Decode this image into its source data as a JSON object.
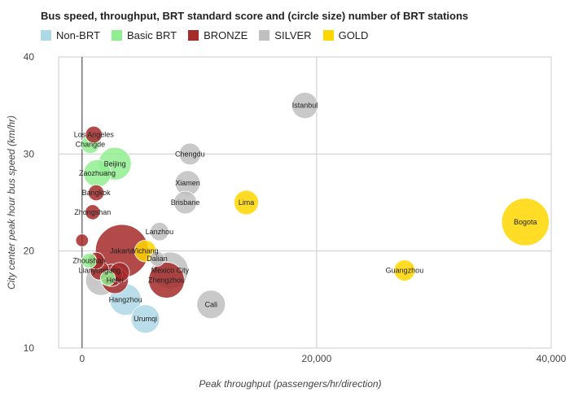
{
  "chart_data": {
    "type": "bubble",
    "title": "Bus speed, throughput, BRT standard score and (circle size) number of BRT stations",
    "xlabel": "Peak throughput (passengers/hr/direction)",
    "ylabel": "City center peak hour bus speed (km/hr)",
    "xlim": [
      -2000,
      40000
    ],
    "ylim": [
      10,
      40
    ],
    "x_ticks": [
      {
        "value": 0,
        "label": "0"
      },
      {
        "value": 20000,
        "label": "20,000"
      },
      {
        "value": 40000,
        "label": "40,000"
      }
    ],
    "y_ticks": [
      {
        "value": 10,
        "label": "10"
      },
      {
        "value": 20,
        "label": "20"
      },
      {
        "value": 30,
        "label": "30"
      },
      {
        "value": 40,
        "label": "40"
      }
    ],
    "grid": true,
    "legend_position": "top-left",
    "categories": [
      {
        "key": "non",
        "name": "Non-BRT",
        "color": "#ADD8E6"
      },
      {
        "key": "basic",
        "name": "Basic BRT",
        "color": "#90EE90"
      },
      {
        "key": "bronze",
        "name": "BRONZE",
        "color": "#A52A2A"
      },
      {
        "key": "silver",
        "name": "SILVER",
        "color": "#C0C0C0"
      },
      {
        "key": "gold",
        "name": "GOLD",
        "color": "#FFD700"
      }
    ],
    "points": [
      {
        "label": "Istanbul",
        "x": 19000,
        "y": 35,
        "size": 45,
        "cat": "silver"
      },
      {
        "label": "Los Angeles",
        "x": 1000,
        "y": 32,
        "size": 14,
        "cat": "bronze"
      },
      {
        "label": "Changde",
        "x": 700,
        "y": 31,
        "size": 18,
        "cat": "basic"
      },
      {
        "label": "Chengdu",
        "x": 9200,
        "y": 30,
        "size": 28,
        "cat": "silver"
      },
      {
        "label": "Beijing",
        "x": 2800,
        "y": 29,
        "size": 77,
        "cat": "basic"
      },
      {
        "label": "Zaozhuang",
        "x": 1300,
        "y": 28,
        "size": 50,
        "cat": "basic"
      },
      {
        "label": "Xiamen",
        "x": 9000,
        "y": 27,
        "size": 40,
        "cat": "silver"
      },
      {
        "label": "Bangkok",
        "x": 1200,
        "y": 26,
        "size": 12,
        "cat": "bronze"
      },
      {
        "label": "Brisbane",
        "x": 8800,
        "y": 25,
        "size": 32,
        "cat": "silver"
      },
      {
        "label": "Lima",
        "x": 14000,
        "y": 25,
        "size": 38,
        "cat": "gold"
      },
      {
        "label": "Zhongshan",
        "x": 900,
        "y": 24,
        "size": 10,
        "cat": "bronze"
      },
      {
        "label": "Bogota",
        "x": 37800,
        "y": 23,
        "size": 180,
        "cat": "gold"
      },
      {
        "label": "Lanzhou",
        "x": 6600,
        "y": 22,
        "size": 18,
        "cat": "silver"
      },
      {
        "label": "",
        "x": 0,
        "y": 21.1,
        "size": 6,
        "cat": "bronze"
      },
      {
        "label": "Jakarta",
        "x": 3400,
        "y": 20,
        "size": 230,
        "cat": "bronze"
      },
      {
        "label": "Yichang",
        "x": 5400,
        "y": 20,
        "size": 28,
        "cat": "gold"
      },
      {
        "label": "Dalian",
        "x": 6400,
        "y": 19.2,
        "size": 10,
        "cat": "silver"
      },
      {
        "label": "Zhoushan",
        "x": 600,
        "y": 19,
        "size": 10,
        "cat": "basic"
      },
      {
        "label": "",
        "x": 1200,
        "y": 19,
        "size": 14,
        "cat": "bronze"
      },
      {
        "label": "Guangzhou",
        "x": 27500,
        "y": 18,
        "size": 26,
        "cat": "gold"
      },
      {
        "label": "Mexico City",
        "x": 7500,
        "y": 18,
        "size": 100,
        "cat": "silver"
      },
      {
        "label": "Lianyungang",
        "x": 1500,
        "y": 18,
        "size": 20,
        "cat": "bronze"
      },
      {
        "label": "",
        "x": 2500,
        "y": 17.5,
        "size": 30,
        "cat": "bronze"
      },
      {
        "label": "",
        "x": 1600,
        "y": 17,
        "size": 65,
        "cat": "silver"
      },
      {
        "label": "Hefei",
        "x": 2800,
        "y": 17,
        "size": 48,
        "cat": "bronze"
      },
      {
        "label": "",
        "x": 3200,
        "y": 17.8,
        "size": 22,
        "cat": "bronze"
      },
      {
        "label": "",
        "x": 2200,
        "y": 17.2,
        "size": 10,
        "cat": "basic"
      },
      {
        "label": "Zhengzhou",
        "x": 7200,
        "y": 17,
        "size": 95,
        "cat": "bronze"
      },
      {
        "label": "Hangzhou",
        "x": 3700,
        "y": 15,
        "size": 70,
        "cat": "non"
      },
      {
        "label": "Cali",
        "x": 11000,
        "y": 14.5,
        "size": 55,
        "cat": "silver"
      },
      {
        "label": "Urumqi",
        "x": 5400,
        "y": 13,
        "size": 55,
        "cat": "non"
      }
    ]
  }
}
